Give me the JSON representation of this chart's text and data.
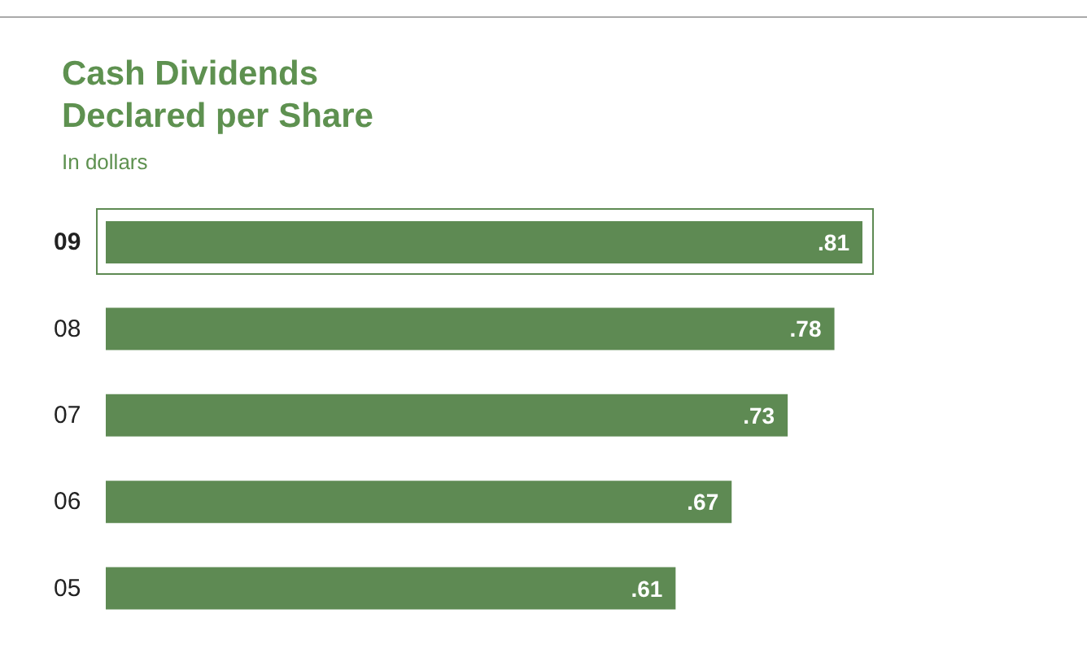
{
  "chart_data": {
    "type": "bar",
    "orientation": "horizontal",
    "title": "Cash Dividends Declared per Share",
    "subtitle": "In dollars",
    "categories": [
      "09",
      "08",
      "07",
      "06",
      "05"
    ],
    "values": [
      0.81,
      0.78,
      0.73,
      0.67,
      0.61
    ],
    "value_labels": [
      ".81",
      ".78",
      ".73",
      ".67",
      ".61"
    ],
    "color": "#5e8a53",
    "grid": false
  }
}
